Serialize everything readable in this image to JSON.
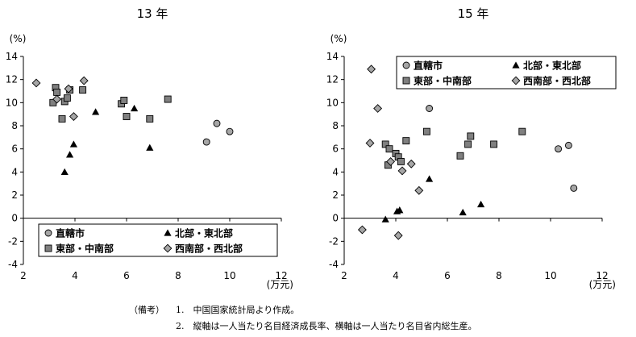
{
  "notes": {
    "label": "（備考）",
    "line1": "1.　中国国家統計局より作成。",
    "line2": "2.　縦軸は一人当たり名目経済成長率、横軸は一人当たり名目省内総生産。"
  },
  "chart_data": [
    {
      "type": "scatter",
      "title": "13 年",
      "ylabel": "(%)",
      "xlabel": "(万元)",
      "xlim": [
        2,
        12
      ],
      "ylim": [
        -4,
        14
      ],
      "xticks": [
        2,
        4,
        6,
        8,
        10,
        12
      ],
      "yticks": [
        -4,
        -2,
        0,
        2,
        4,
        6,
        8,
        10,
        12,
        14
      ],
      "grid": false,
      "legend_position": "bottom",
      "series": [
        {
          "name": "直轄市",
          "marker": "circle",
          "color": "#a6a6a6",
          "points": [
            [
              9.1,
              6.6
            ],
            [
              9.5,
              8.2
            ],
            [
              10.0,
              7.5
            ]
          ]
        },
        {
          "name": "北部・東北部",
          "marker": "triangle",
          "color": "#000000",
          "points": [
            [
              3.6,
              4.0
            ],
            [
              3.8,
              5.5
            ],
            [
              3.95,
              6.4
            ],
            [
              4.8,
              9.2
            ],
            [
              6.3,
              9.5
            ],
            [
              6.9,
              6.1
            ]
          ]
        },
        {
          "name": "東部・中南部",
          "marker": "square",
          "color": "#808080",
          "points": [
            [
              3.15,
              10.0
            ],
            [
              3.25,
              11.3
            ],
            [
              3.3,
              10.9
            ],
            [
              3.5,
              8.6
            ],
            [
              3.6,
              10.1
            ],
            [
              3.7,
              10.4
            ],
            [
              3.8,
              11.1
            ],
            [
              4.3,
              11.1
            ],
            [
              5.8,
              9.9
            ],
            [
              5.9,
              10.2
            ],
            [
              6.0,
              8.8
            ],
            [
              6.9,
              8.6
            ],
            [
              7.6,
              10.3
            ]
          ]
        },
        {
          "name": "西南部・西北部",
          "marker": "diamond",
          "color": "#a6a6a6",
          "points": [
            [
              2.5,
              11.7
            ],
            [
              3.3,
              10.3
            ],
            [
              3.75,
              11.2
            ],
            [
              3.95,
              8.8
            ],
            [
              4.35,
              11.9
            ]
          ]
        }
      ]
    },
    {
      "type": "scatter",
      "title": "15 年",
      "ylabel": "(%)",
      "xlabel": "(万元)",
      "xlim": [
        2,
        12
      ],
      "ylim": [
        -4,
        14
      ],
      "xticks": [
        2,
        4,
        6,
        8,
        10,
        12
      ],
      "yticks": [
        -4,
        -2,
        0,
        2,
        4,
        6,
        8,
        10,
        12,
        14
      ],
      "grid": false,
      "legend_position": "top-right",
      "series": [
        {
          "name": "直轄市",
          "marker": "circle",
          "color": "#a6a6a6",
          "points": [
            [
              5.3,
              9.5
            ],
            [
              10.3,
              6.0
            ],
            [
              10.7,
              6.3
            ],
            [
              10.9,
              2.6
            ]
          ]
        },
        {
          "name": "北部・東北部",
          "marker": "triangle",
          "color": "#000000",
          "points": [
            [
              3.6,
              -0.1
            ],
            [
              4.05,
              0.6
            ],
            [
              4.15,
              0.7
            ],
            [
              5.3,
              3.4
            ],
            [
              6.6,
              0.5
            ],
            [
              7.3,
              1.2
            ]
          ]
        },
        {
          "name": "東部・中南部",
          "marker": "square",
          "color": "#808080",
          "points": [
            [
              3.6,
              6.4
            ],
            [
              3.7,
              4.6
            ],
            [
              3.75,
              6.0
            ],
            [
              4.0,
              5.6
            ],
            [
              4.1,
              5.3
            ],
            [
              4.2,
              4.9
            ],
            [
              4.4,
              6.7
            ],
            [
              5.2,
              7.5
            ],
            [
              6.5,
              5.4
            ],
            [
              6.8,
              6.4
            ],
            [
              6.9,
              7.1
            ],
            [
              7.8,
              6.4
            ],
            [
              8.9,
              7.5
            ]
          ]
        },
        {
          "name": "西南部・西北部",
          "marker": "diamond",
          "color": "#a6a6a6",
          "points": [
            [
              2.7,
              -1.0
            ],
            [
              3.05,
              12.9
            ],
            [
              3.0,
              6.5
            ],
            [
              3.3,
              9.5
            ],
            [
              3.8,
              4.9
            ],
            [
              4.1,
              -1.5
            ],
            [
              4.25,
              4.1
            ],
            [
              4.6,
              4.7
            ],
            [
              4.9,
              2.4
            ]
          ]
        }
      ]
    }
  ]
}
